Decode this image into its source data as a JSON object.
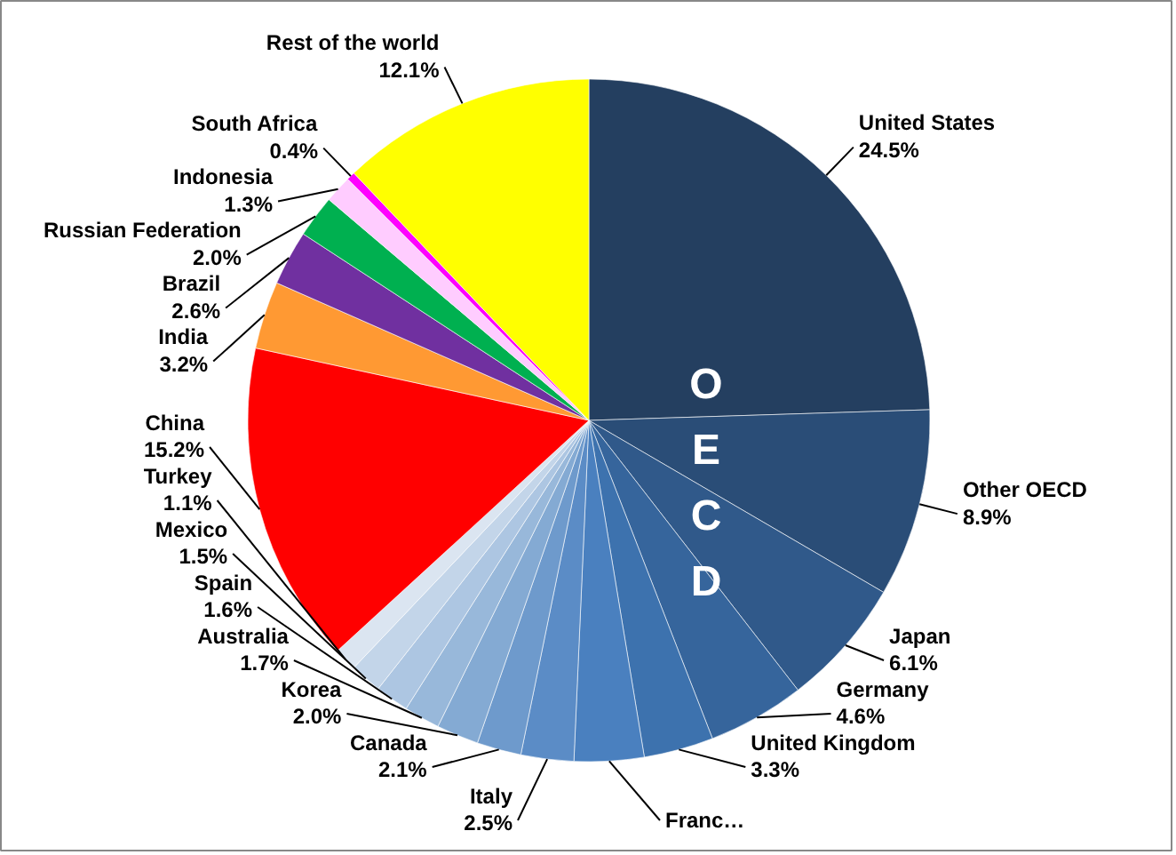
{
  "chart_data": {
    "type": "pie",
    "categories": [
      "United States",
      "Other OECD",
      "Japan",
      "Germany",
      "United Kingdom",
      "Franc…",
      "Italy",
      "Canada",
      "Korea",
      "Australia",
      "Spain",
      "Mexico",
      "Turkey",
      "China",
      "India",
      "Brazil",
      "Russian Federation",
      "Indonesia",
      "South Africa",
      "Rest of the world"
    ],
    "values": [
      24.5,
      8.9,
      6.1,
      4.6,
      3.3,
      3.3,
      2.5,
      2.1,
      2.0,
      1.7,
      1.6,
      1.5,
      1.1,
      15.2,
      3.2,
      2.6,
      2.0,
      1.3,
      0.4,
      12.1
    ],
    "value_labels": [
      "24.5%",
      "8.9%",
      "6.1%",
      "4.6%",
      "3.3%",
      null,
      "2.5%",
      "2.1%",
      "2.0%",
      "1.7%",
      "1.6%",
      "1.5%",
      "1.1%",
      "15.2%",
      "3.2%",
      "2.6%",
      "2.0%",
      "1.3%",
      "0.4%",
      "12.1%"
    ],
    "colors": [
      "#243f60",
      "#2a4d77",
      "#30598a",
      "#36659c",
      "#3d72ae",
      "#4a80bf",
      "#5b8cc6",
      "#6e9acc",
      "#84aad3",
      "#98b8da",
      "#adc6e2",
      "#c3d5e9",
      "#dbe5f1",
      "#ff0000",
      "#ff9933",
      "#7030a0",
      "#00b050",
      "#ffccff",
      "#ff00ff",
      "#ffff00"
    ],
    "annotations": [
      "OECD"
    ]
  }
}
